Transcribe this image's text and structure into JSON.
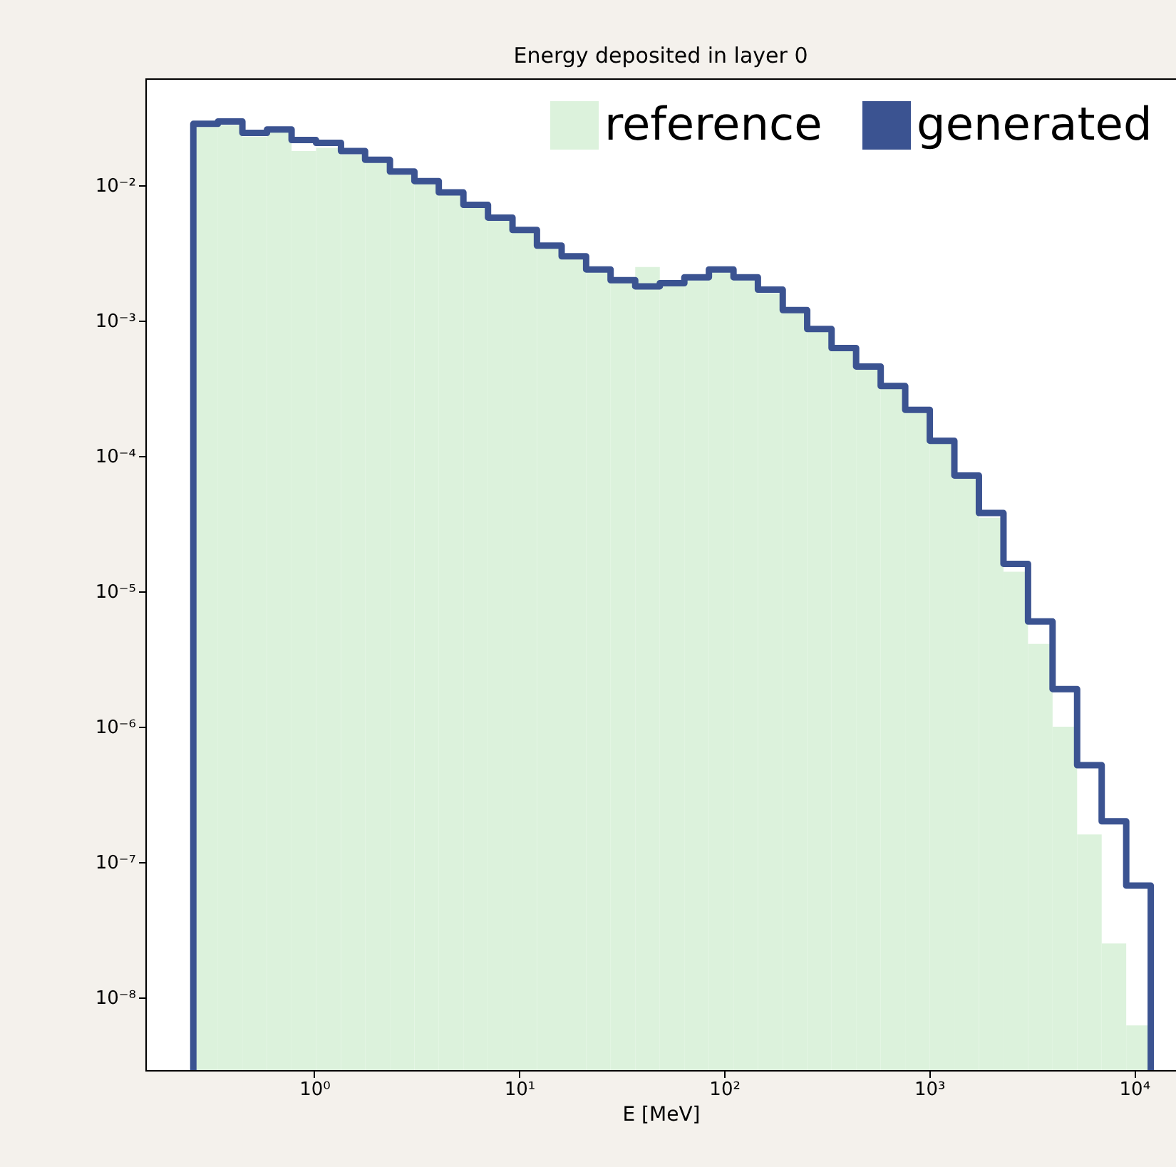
{
  "chart_data": {
    "type": "histogram",
    "title": "Energy deposited in layer 0",
    "xlabel": "E [MeV]",
    "log": "xy",
    "grid": false,
    "legend": "top right",
    "xlim": [
      0.15,
      16000
    ],
    "ylim": [
      2.9e-09,
      0.062
    ],
    "xticks": [
      {
        "value": 1,
        "label": "10⁰"
      },
      {
        "value": 10,
        "label": "10¹"
      },
      {
        "value": 100,
        "label": "10²"
      },
      {
        "value": 1000,
        "label": "10³"
      },
      {
        "value": 10000,
        "label": "10⁴"
      }
    ],
    "yticks": [
      {
        "value": 1e-08,
        "label": "10⁻⁸"
      },
      {
        "value": 1e-07,
        "label": "10⁻⁷"
      },
      {
        "value": 1e-06,
        "label": "10⁻⁶"
      },
      {
        "value": 1e-05,
        "label": "10⁻⁵"
      },
      {
        "value": 0.0001,
        "label": "10⁻⁴"
      },
      {
        "value": 0.001,
        "label": "10⁻³"
      },
      {
        "value": 0.01,
        "label": "10⁻²"
      }
    ],
    "bins": [
      0.257,
      0.339,
      0.446,
      0.588,
      0.775,
      1.02,
      1.35,
      1.77,
      2.34,
      3.08,
      4.05,
      5.34,
      7.04,
      9.27,
      12.2,
      16.1,
      21.2,
      27.9,
      36.8,
      48.5,
      63.9,
      84.2,
      111,
      146,
      193,
      254,
      334,
      440,
      580,
      764,
      1007,
      1327,
      1748,
      2304,
      3035,
      3999,
      5269,
      6943,
      9147,
      12050
    ],
    "series": [
      {
        "name": "reference",
        "color": "#dcf2dc",
        "values": [
          0.027,
          0.028,
          0.023,
          0.025,
          0.018,
          0.019,
          0.017,
          0.015,
          0.012,
          0.0105,
          0.0086,
          0.007,
          0.0056,
          0.0045,
          0.0035,
          0.0029,
          0.0023,
          0.0019,
          0.0025,
          0.0019,
          0.002,
          0.0023,
          0.002,
          0.0016,
          0.0012,
          0.00085,
          0.00061,
          0.00044,
          0.00032,
          0.00021,
          0.00013,
          7e-05,
          3.5e-05,
          1.4e-05,
          4.1e-06,
          1e-06,
          1.6e-07,
          2.5e-08,
          6.2e-09
        ]
      },
      {
        "name": "generated",
        "color": "#3b5391",
        "values": [
          0.0286,
          0.0298,
          0.0245,
          0.026,
          0.0217,
          0.0207,
          0.018,
          0.0155,
          0.0127,
          0.0108,
          0.0089,
          0.0072,
          0.0058,
          0.0047,
          0.0036,
          0.003,
          0.0024,
          0.002,
          0.0018,
          0.0019,
          0.0021,
          0.0024,
          0.0021,
          0.0017,
          0.0012,
          0.00087,
          0.00063,
          0.00046,
          0.00033,
          0.00022,
          0.00013,
          7.2e-05,
          3.8e-05,
          1.6e-05,
          6e-06,
          1.9e-06,
          5.2e-07,
          2e-07,
          6.7e-08
        ]
      }
    ]
  }
}
